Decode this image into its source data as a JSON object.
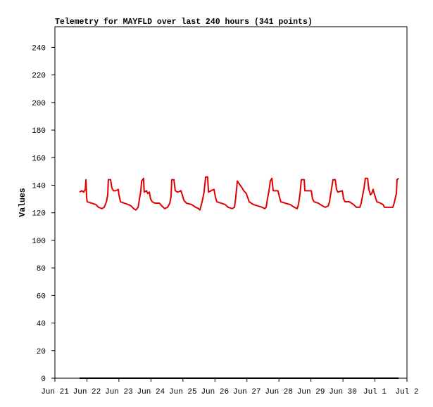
{
  "chart_data": {
    "type": "line",
    "title": "Telemetry for MAYFLD over last 240 hours (341 points)",
    "ylabel": "Values",
    "xlim": [
      0,
      11
    ],
    "xticks": [
      {
        "value": 0,
        "label": "Jun 21"
      },
      {
        "value": 1,
        "label": "Jun 22"
      },
      {
        "value": 2,
        "label": "Jun 23"
      },
      {
        "value": 3,
        "label": "Jun 24"
      },
      {
        "value": 4,
        "label": "Jun 25"
      },
      {
        "value": 5,
        "label": "Jun 26"
      },
      {
        "value": 6,
        "label": "Jun 27"
      },
      {
        "value": 7,
        "label": "Jun 28"
      },
      {
        "value": 8,
        "label": "Jun 29"
      },
      {
        "value": 9,
        "label": "Jun 30"
      },
      {
        "value": 10,
        "label": "Jul 1"
      },
      {
        "value": 11,
        "label": "Jul 2"
      }
    ],
    "ylim": [
      0,
      255
    ],
    "yticks": [
      0,
      20,
      40,
      60,
      80,
      100,
      120,
      140,
      160,
      180,
      200,
      220,
      240
    ],
    "series": [
      {
        "color": "#e00000",
        "x": [
          0.77,
          0.84,
          0.9,
          0.95,
          0.97,
          0.99,
          1.01,
          1.14,
          1.28,
          1.36,
          1.47,
          1.54,
          1.61,
          1.65,
          1.67,
          1.74,
          1.78,
          1.83,
          1.91,
          1.98,
          2.0,
          2.05,
          2.16,
          2.29,
          2.38,
          2.46,
          2.53,
          2.6,
          2.64,
          2.68,
          2.71,
          2.77,
          2.79,
          2.86,
          2.9,
          2.95,
          2.99,
          3.04,
          3.12,
          3.26,
          3.34,
          3.43,
          3.52,
          3.59,
          3.63,
          3.65,
          3.72,
          3.76,
          3.83,
          3.94,
          3.98,
          4.03,
          4.11,
          4.27,
          4.4,
          4.49,
          4.53,
          4.6,
          4.66,
          4.71,
          4.77,
          4.8,
          4.88,
          4.97,
          5.02,
          5.06,
          5.19,
          5.32,
          5.41,
          5.54,
          5.61,
          5.65,
          5.7,
          5.76,
          5.85,
          5.9,
          5.98,
          6.07,
          6.2,
          6.34,
          6.47,
          6.56,
          6.6,
          6.64,
          6.69,
          6.73,
          6.78,
          6.82,
          6.97,
          7.02,
          7.06,
          7.19,
          7.35,
          7.48,
          7.57,
          7.61,
          7.66,
          7.7,
          7.79,
          7.81,
          7.96,
          8.01,
          8.05,
          8.1,
          8.23,
          8.36,
          8.45,
          8.54,
          8.58,
          8.62,
          8.69,
          8.76,
          8.8,
          8.84,
          8.98,
          9.02,
          9.07,
          9.2,
          9.33,
          9.42,
          9.53,
          9.57,
          9.61,
          9.66,
          9.7,
          9.77,
          9.81,
          9.86,
          9.9,
          9.94,
          9.99,
          10.06,
          10.17,
          10.25,
          10.3,
          10.43,
          10.56,
          10.6,
          10.67,
          10.69,
          10.74
        ],
        "values": [
          135,
          136,
          135,
          137,
          144,
          131,
          128,
          127,
          126,
          124,
          123,
          124,
          128,
          133,
          144,
          144,
          138,
          136,
          136,
          137,
          133,
          128,
          127,
          126,
          125,
          123,
          122,
          124,
          130,
          135,
          143,
          145,
          135,
          136,
          134,
          135,
          130,
          128,
          127,
          127,
          125,
          123,
          124,
          127,
          132,
          144,
          144,
          136,
          135,
          136,
          133,
          129,
          127,
          126,
          124,
          123,
          122,
          128,
          135,
          146,
          146,
          135,
          136,
          137,
          131,
          128,
          127,
          126,
          124,
          123,
          124,
          131,
          143,
          141,
          138,
          136,
          134,
          128,
          126,
          125,
          124,
          123,
          124,
          130,
          136,
          143,
          145,
          136,
          136,
          131,
          128,
          127,
          126,
          124,
          123,
          126,
          134,
          144,
          144,
          136,
          136,
          136,
          130,
          128,
          127,
          125,
          124,
          125,
          128,
          134,
          144,
          144,
          137,
          135,
          136,
          130,
          128,
          128,
          126,
          124,
          124,
          127,
          132,
          138,
          145,
          145,
          137,
          133,
          134,
          137,
          133,
          128,
          127,
          126,
          124,
          124,
          124,
          127,
          134,
          144,
          145
        ]
      },
      {
        "color": "#000000",
        "x": [
          0.77,
          10.74
        ],
        "values": [
          0,
          0
        ]
      }
    ]
  }
}
